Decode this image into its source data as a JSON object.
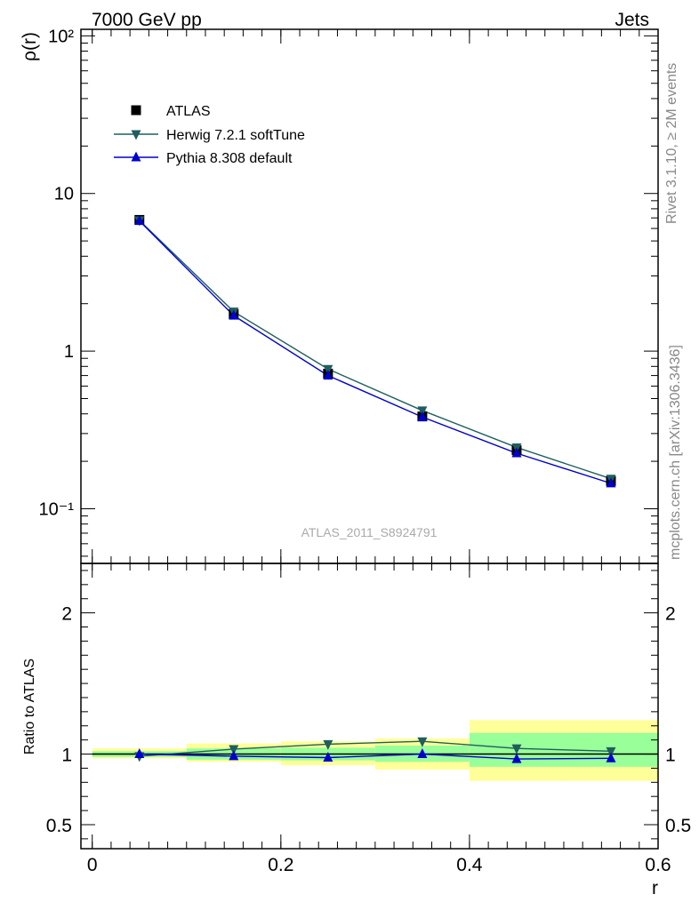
{
  "header": {
    "left": "7000 GeV pp",
    "right": "Jets"
  },
  "side_text": {
    "rivet": "Rivet 3.1.10, ≥ 2M events",
    "mcplots": "mcplots.cern.ch [arXiv:1306.3436]"
  },
  "watermark": "ATLAS_2011_S8924791",
  "colors": {
    "atlas": "#000000",
    "herwig": "#1f5e5e",
    "pythia": "#0000cc",
    "band_inner": "#99ff99",
    "band_outer": "#ffff99"
  },
  "chart_data": [
    {
      "type": "line",
      "scale_y": "log",
      "xlabel": "",
      "ylabel": "ρ(r)",
      "xlim": [
        -0.012,
        0.6
      ],
      "ylim": [
        0.045,
        110
      ],
      "y_tick_labels": [
        "10⁻¹",
        "1",
        "10",
        "10²"
      ],
      "legend_position": "top-left",
      "legend": [
        "ATLAS",
        "Herwig 7.2.1 softTune",
        "Pythia 8.308 default"
      ],
      "x": [
        0.05,
        0.15,
        0.25,
        0.35,
        0.45,
        0.55
      ],
      "series": [
        {
          "name": "ATLAS",
          "marker": "square",
          "values": [
            6.8,
            1.72,
            0.72,
            0.385,
            0.235,
            0.15
          ]
        },
        {
          "name": "Herwig 7.2.1 softTune",
          "marker": "triangle-down",
          "values": [
            6.75,
            1.78,
            0.77,
            0.42,
            0.245,
            0.155
          ]
        },
        {
          "name": "Pythia 8.308 default",
          "marker": "triangle-up",
          "values": [
            6.7,
            1.68,
            0.7,
            0.382,
            0.225,
            0.145
          ]
        }
      ]
    },
    {
      "type": "line",
      "xlabel": "r",
      "ylabel": "Ratio to ATLAS",
      "xlim": [
        -0.012,
        0.6
      ],
      "ylim": [
        0.33,
        2.35
      ],
      "y_ticks": [
        0.5,
        1,
        2
      ],
      "y_tick_labels": [
        "0.5",
        "1",
        "2"
      ],
      "x_ticks": [
        0,
        0.2,
        0.4,
        0.6
      ],
      "x_tick_labels": [
        "0",
        "0.2",
        "0.4",
        "0.6"
      ],
      "x": [
        0.05,
        0.15,
        0.25,
        0.35,
        0.45,
        0.55
      ],
      "bands": {
        "edges": [
          0,
          0.1,
          0.2,
          0.3,
          0.4,
          0.5,
          0.6
        ],
        "inner": [
          [
            0.98,
            1.02
          ],
          [
            0.96,
            1.04
          ],
          [
            0.955,
            1.045
          ],
          [
            0.945,
            1.06
          ],
          [
            0.91,
            1.15
          ],
          [
            0.91,
            1.15
          ]
        ],
        "outer": [
          [
            0.97,
            1.04
          ],
          [
            0.945,
            1.075
          ],
          [
            0.92,
            1.09
          ],
          [
            0.89,
            1.11
          ],
          [
            0.81,
            1.24
          ],
          [
            0.81,
            1.24
          ]
        ]
      },
      "series": [
        {
          "name": "Herwig 7.2.1 softTune",
          "marker": "triangle-down",
          "values": [
            0.985,
            1.035,
            1.07,
            1.09,
            1.04,
            1.02
          ]
        },
        {
          "name": "Pythia 8.308 default",
          "marker": "triangle-up",
          "values": [
            1.0,
            0.985,
            0.975,
            1.0,
            0.965,
            0.97
          ]
        }
      ]
    }
  ]
}
